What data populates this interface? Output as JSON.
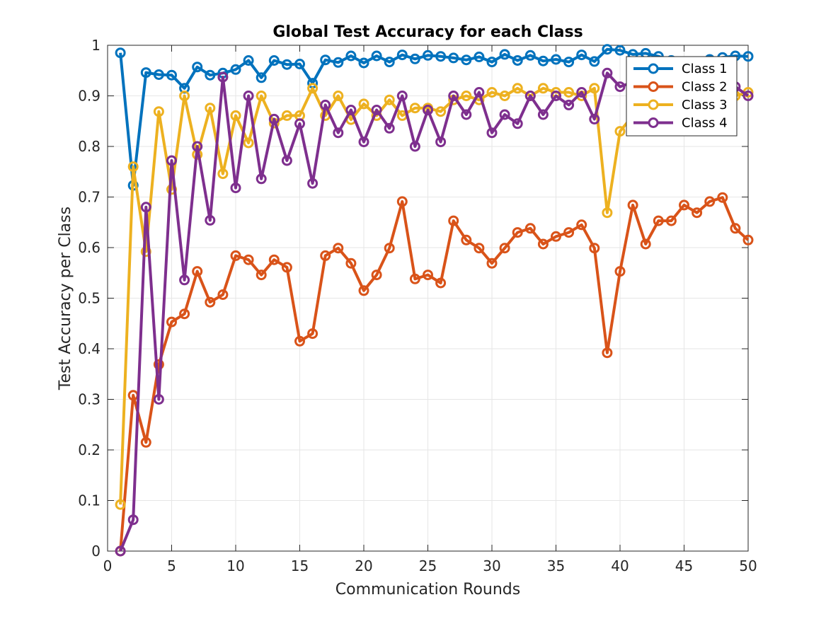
{
  "chart_data": {
    "type": "line",
    "title": "Global Test Accuracy for each Class",
    "xlabel": "Communication Rounds",
    "ylabel": "Test Accuracy per Class",
    "xlim": [
      0,
      50
    ],
    "ylim": [
      0,
      1
    ],
    "xticks": [
      "0",
      "5",
      "10",
      "15",
      "20",
      "25",
      "30",
      "35",
      "40",
      "45",
      "50"
    ],
    "yticks": [
      "0",
      "0.1",
      "0.2",
      "0.3",
      "0.4",
      "0.5",
      "0.6",
      "0.7",
      "0.8",
      "0.9",
      "1"
    ],
    "grid": true,
    "legend_position": "top-right",
    "x": [
      1,
      2,
      3,
      4,
      5,
      6,
      7,
      8,
      9,
      10,
      11,
      12,
      13,
      14,
      15,
      16,
      17,
      18,
      19,
      20,
      21,
      22,
      23,
      24,
      25,
      26,
      27,
      28,
      29,
      30,
      31,
      32,
      33,
      34,
      35,
      36,
      37,
      38,
      39,
      40,
      41,
      42,
      43,
      44,
      45,
      46,
      47,
      48,
      49,
      50
    ],
    "series": [
      {
        "name": "Class 1",
        "color": "#0072BD",
        "values": [
          0.985,
          0.723,
          0.946,
          0.942,
          0.941,
          0.915,
          0.957,
          0.941,
          0.945,
          0.952,
          0.97,
          0.936,
          0.97,
          0.962,
          0.963,
          0.925,
          0.971,
          0.966,
          0.979,
          0.965,
          0.979,
          0.967,
          0.981,
          0.973,
          0.98,
          0.978,
          0.975,
          0.971,
          0.977,
          0.967,
          0.982,
          0.97,
          0.98,
          0.969,
          0.972,
          0.967,
          0.981,
          0.968,
          0.992,
          0.99,
          0.982,
          0.984,
          0.978,
          0.97,
          0.96,
          0.967,
          0.972,
          0.976,
          0.979,
          0.978
        ]
      },
      {
        "name": "Class 2",
        "color": "#D95319",
        "values": [
          0.0,
          0.308,
          0.215,
          0.369,
          0.453,
          0.469,
          0.553,
          0.492,
          0.507,
          0.584,
          0.576,
          0.546,
          0.576,
          0.561,
          0.415,
          0.43,
          0.584,
          0.599,
          0.569,
          0.515,
          0.546,
          0.599,
          0.691,
          0.538,
          0.546,
          0.53,
          0.653,
          0.615,
          0.599,
          0.569,
          0.599,
          0.63,
          0.638,
          0.607,
          0.622,
          0.63,
          0.645,
          0.599,
          0.392,
          0.553,
          0.684,
          0.607,
          0.653,
          0.653,
          0.684,
          0.669,
          0.691,
          0.699,
          0.638,
          0.615
        ]
      },
      {
        "name": "Class 3",
        "color": "#EDB120",
        "values": [
          0.092,
          0.76,
          0.592,
          0.869,
          0.715,
          0.9,
          0.784,
          0.876,
          0.746,
          0.861,
          0.807,
          0.9,
          0.846,
          0.861,
          0.861,
          0.915,
          0.861,
          0.9,
          0.853,
          0.884,
          0.861,
          0.892,
          0.861,
          0.876,
          0.876,
          0.869,
          0.892,
          0.9,
          0.892,
          0.907,
          0.9,
          0.915,
          0.9,
          0.915,
          0.907,
          0.907,
          0.9,
          0.915,
          0.669,
          0.83,
          0.861,
          0.892,
          0.9,
          0.9,
          0.9,
          0.9,
          0.907,
          0.9,
          0.9,
          0.907
        ]
      },
      {
        "name": "Class 4",
        "color": "#7E2F8E",
        "values": [
          0.0,
          0.062,
          0.68,
          0.3,
          0.772,
          0.536,
          0.8,
          0.654,
          0.937,
          0.718,
          0.9,
          0.736,
          0.854,
          0.772,
          0.845,
          0.727,
          0.882,
          0.827,
          0.872,
          0.809,
          0.872,
          0.836,
          0.9,
          0.8,
          0.872,
          0.809,
          0.9,
          0.863,
          0.907,
          0.827,
          0.863,
          0.845,
          0.9,
          0.863,
          0.9,
          0.882,
          0.907,
          0.854,
          0.945,
          0.918,
          0.927,
          0.9,
          0.907,
          0.918,
          0.909,
          0.9,
          0.918,
          0.909,
          0.918,
          0.9
        ]
      }
    ]
  }
}
